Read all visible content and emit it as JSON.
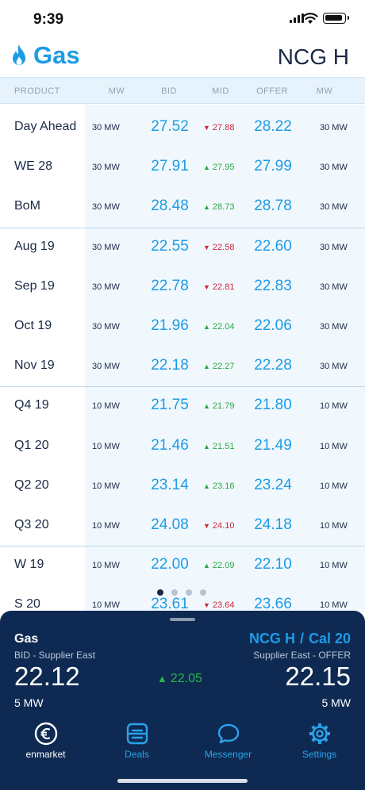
{
  "status": {
    "time": "9:39"
  },
  "header": {
    "title": "Gas",
    "hub": "NCG H",
    "accent": "#1d9be6"
  },
  "columns": {
    "product": "PRODUCT",
    "mw_bid": "MW",
    "bid": "BID",
    "mid": "MID",
    "offer": "OFFER",
    "mw_offer": "MW"
  },
  "rows": [
    {
      "product": "Day Ahead",
      "mw_bid": "30 MW",
      "bid": "27.52",
      "mid": "27.88",
      "mid_dir": "down",
      "offer": "28.22",
      "mw_offer": "30 MW"
    },
    {
      "product": "WE 28",
      "mw_bid": "30 MW",
      "bid": "27.91",
      "mid": "27.95",
      "mid_dir": "up",
      "offer": "27.99",
      "mw_offer": "30 MW"
    },
    {
      "product": "BoM",
      "mw_bid": "30 MW",
      "bid": "28.48",
      "mid": "28.73",
      "mid_dir": "up",
      "offer": "28.78",
      "mw_offer": "30 MW"
    },
    {
      "product": "Aug 19",
      "mw_bid": "30 MW",
      "bid": "22.55",
      "mid": "22.58",
      "mid_dir": "down",
      "offer": "22.60",
      "mw_offer": "30 MW"
    },
    {
      "product": "Sep 19",
      "mw_bid": "30 MW",
      "bid": "22.78",
      "mid": "22.81",
      "mid_dir": "down",
      "offer": "22.83",
      "mw_offer": "30 MW"
    },
    {
      "product": "Oct 19",
      "mw_bid": "30 MW",
      "bid": "21.96",
      "mid": "22.04",
      "mid_dir": "up",
      "offer": "22.06",
      "mw_offer": "30 MW"
    },
    {
      "product": "Nov 19",
      "mw_bid": "30 MW",
      "bid": "22.18",
      "mid": "22.27",
      "mid_dir": "up",
      "offer": "22.28",
      "mw_offer": "30 MW"
    },
    {
      "product": "Q4 19",
      "mw_bid": "10 MW",
      "bid": "21.75",
      "mid": "21.79",
      "mid_dir": "up",
      "offer": "21.80",
      "mw_offer": "10 MW"
    },
    {
      "product": "Q1 20",
      "mw_bid": "10 MW",
      "bid": "21.46",
      "mid": "21.51",
      "mid_dir": "up",
      "offer": "21.49",
      "mw_offer": "10 MW"
    },
    {
      "product": "Q2 20",
      "mw_bid": "10 MW",
      "bid": "23.14",
      "mid": "23.16",
      "mid_dir": "up",
      "offer": "23.24",
      "mw_offer": "10 MW"
    },
    {
      "product": "Q3 20",
      "mw_bid": "10 MW",
      "bid": "24.08",
      "mid": "24.10",
      "mid_dir": "down",
      "offer": "24.18",
      "mw_offer": "10 MW"
    },
    {
      "product": "W 19",
      "mw_bid": "10 MW",
      "bid": "22.00",
      "mid": "22.09",
      "mid_dir": "up",
      "offer": "22.10",
      "mw_offer": "10 MW"
    },
    {
      "product": "S 20",
      "mw_bid": "10 MW",
      "bid": "23.61",
      "mid": "23.64",
      "mid_dir": "down",
      "offer": "23.66",
      "mw_offer": "10 MW"
    }
  ],
  "pager": {
    "pages": 4,
    "current": 1
  },
  "panel": {
    "product": "Gas",
    "bid_label": "BID - Supplier East",
    "bid": "22.12",
    "bid_mw": "5 MW",
    "mid": "22.05",
    "mid_dir": "up",
    "hub": "NCG H",
    "slash": "/",
    "contract": "Cal 20",
    "offer_label": "Supplier East - OFFER",
    "offer": "22.15",
    "offer_mw": "5 MW"
  },
  "tabs": [
    {
      "label": "enmarket",
      "icon": "euro-icon"
    },
    {
      "label": "Deals",
      "icon": "deals-icon"
    },
    {
      "label": "Messenger",
      "icon": "chat-bubble-icon"
    },
    {
      "label": "Settings",
      "icon": "gear-icon"
    }
  ],
  "colors": {
    "up": "#28a745",
    "down": "#d0263a",
    "panel": "#0e2a52"
  }
}
